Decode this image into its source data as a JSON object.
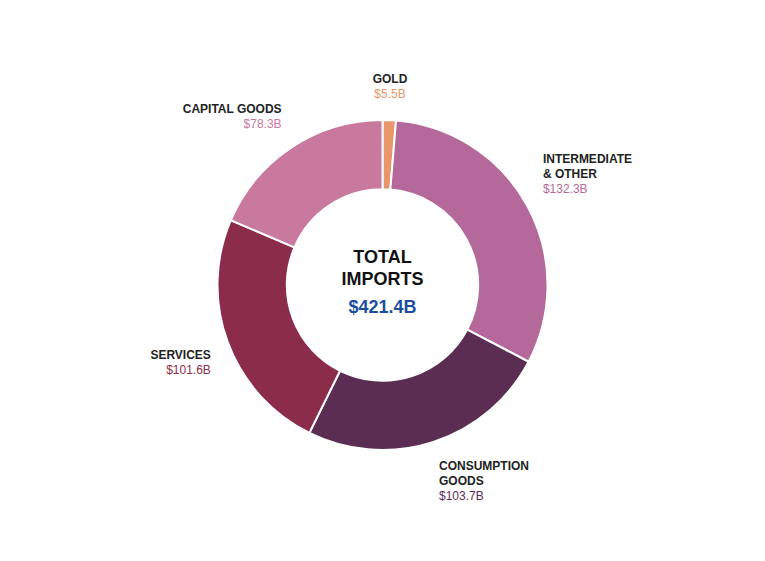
{
  "chart_data": {
    "type": "donut",
    "title": "TOTAL\nIMPORTS",
    "subtitle": "$421.4B",
    "categories": [
      "GOLD",
      "INTERMEDIATE\n& OTHER",
      "CONSUMPTION\nGOODS",
      "SERVICES",
      "CAPITAL GOODS"
    ],
    "values": [
      5.5,
      132.3,
      103.7,
      101.6,
      78.3
    ],
    "value_labels": [
      "$5.5B",
      "$132.3B",
      "$103.7B",
      "$101.6B",
      "$78.3B"
    ],
    "colors": [
      "#e8976a",
      "#b5689a",
      "#5c2d52",
      "#8b2d4a",
      "#c9799e"
    ],
    "data_labels": true
  }
}
